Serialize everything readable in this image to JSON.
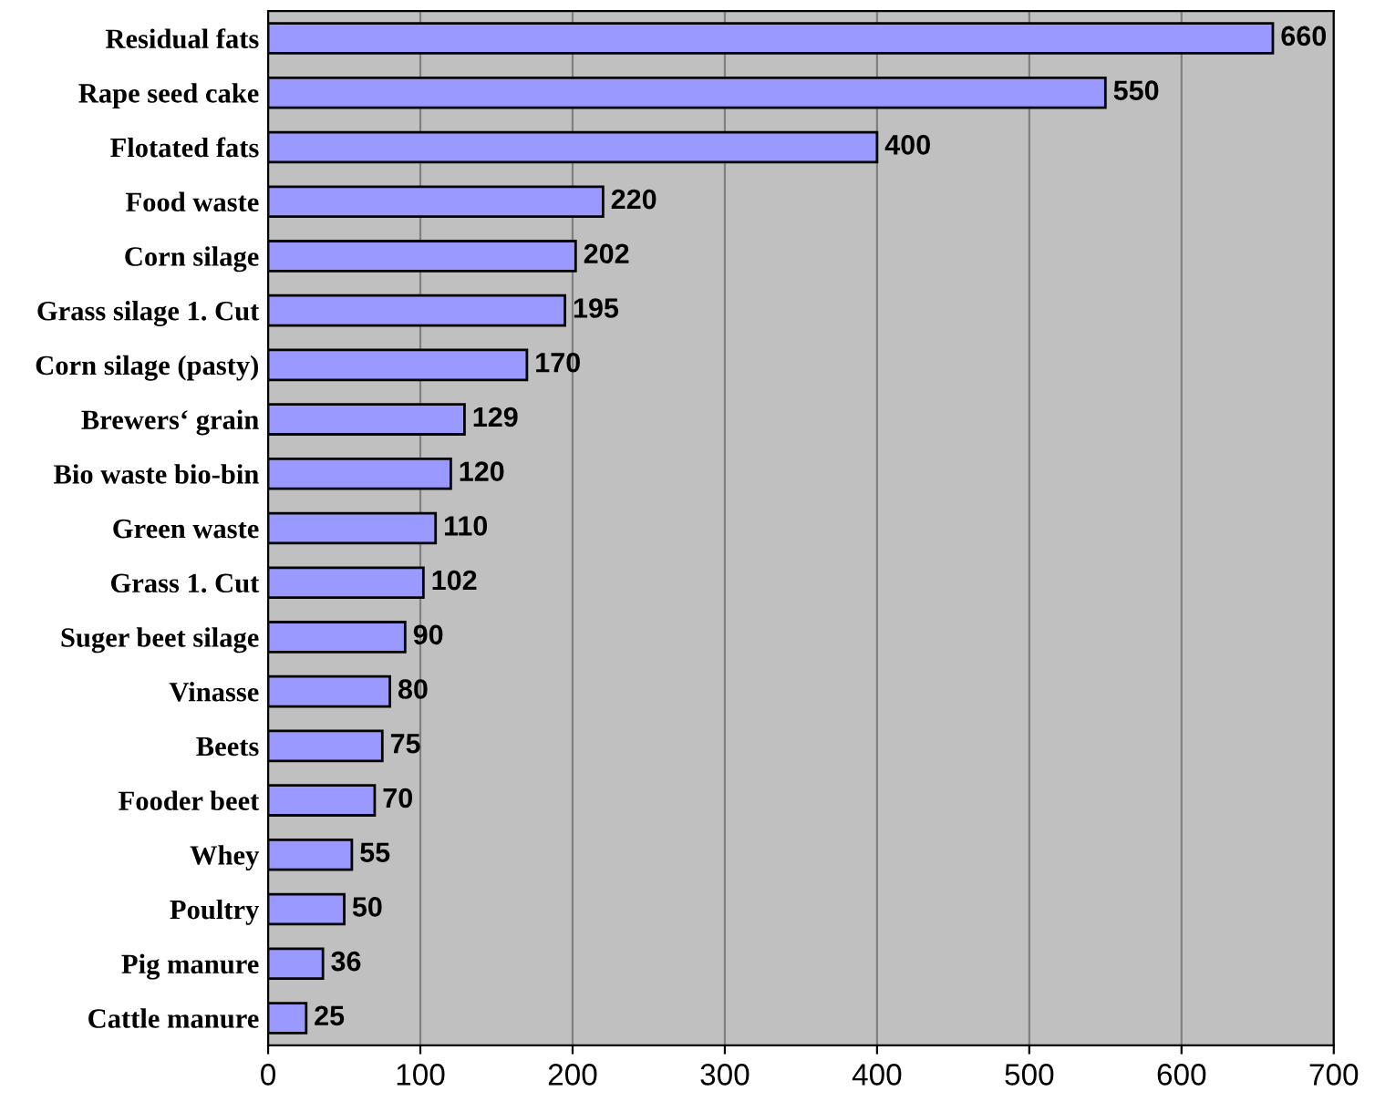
{
  "chart_data": {
    "type": "bar",
    "orientation": "horizontal",
    "categories": [
      "Residual fats",
      "Rape seed cake",
      "Flotated fats",
      "Food waste",
      "Corn silage",
      "Grass silage 1. Cut",
      "Corn silage (pasty)",
      "Brewers‘ grain",
      "Bio waste bio-bin",
      "Green waste",
      "Grass 1. Cut",
      "Suger beet silage",
      "Vinasse",
      "Beets",
      "Fooder beet",
      "Whey",
      "Poultry",
      "Pig manure",
      "Cattle manure"
    ],
    "values": [
      660,
      550,
      400,
      220,
      202,
      195,
      170,
      129,
      120,
      110,
      102,
      90,
      80,
      75,
      70,
      55,
      50,
      36,
      25
    ],
    "color": "#9999ff",
    "xlim": [
      0,
      700
    ],
    "xticks": [
      0,
      100,
      200,
      300,
      400,
      500,
      600,
      700
    ],
    "grid": "x",
    "data_labels": true
  }
}
